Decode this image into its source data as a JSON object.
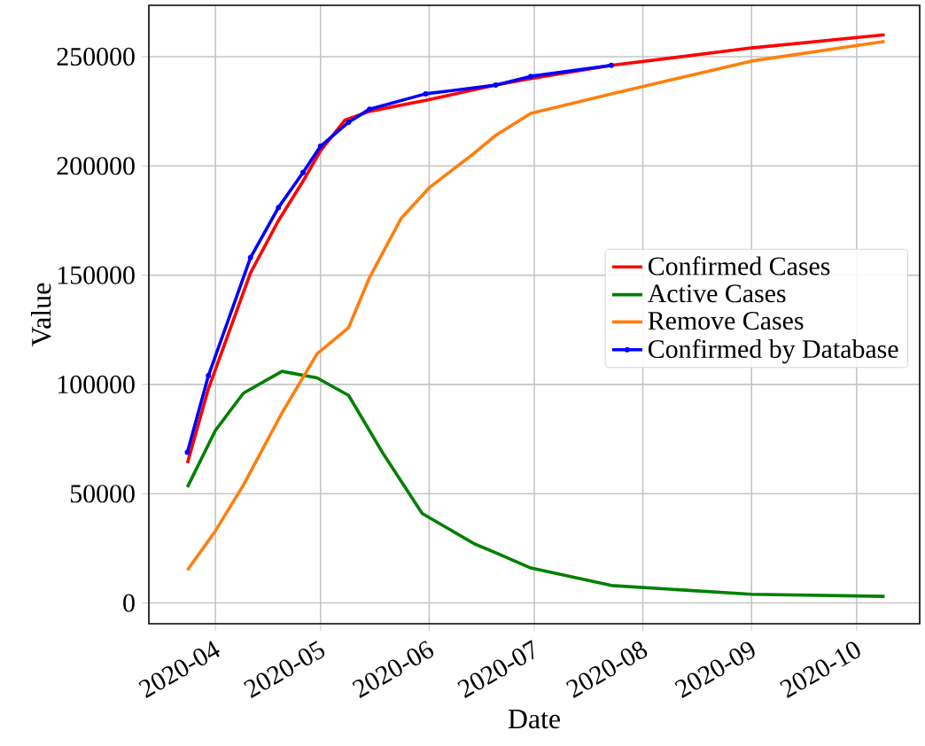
{
  "chart_data": {
    "type": "line",
    "xlabel": "Date",
    "ylabel": "Value",
    "xlim": [
      "2020-03-13",
      "2020-10-19"
    ],
    "ylim": [
      -9500,
      273500
    ],
    "xticks": [
      {
        "value": "2020-04-01",
        "label": "2020-04"
      },
      {
        "value": "2020-05-01",
        "label": "2020-05"
      },
      {
        "value": "2020-06-01",
        "label": "2020-06"
      },
      {
        "value": "2020-07-01",
        "label": "2020-07"
      },
      {
        "value": "2020-08-01",
        "label": "2020-08"
      },
      {
        "value": "2020-09-01",
        "label": "2020-09"
      },
      {
        "value": "2020-10-01",
        "label": "2020-10"
      }
    ],
    "yticks": [
      0,
      50000,
      100000,
      150000,
      200000,
      250000
    ],
    "grid": true,
    "legend": "right",
    "marker": "none",
    "line_style": "solid",
    "series": [
      {
        "name": "Confirmed Cases",
        "color": "#ff0000",
        "x": [
          "2020-03-24",
          "2020-03-30",
          "2020-04-11",
          "2020-04-19",
          "2020-04-26",
          "2020-05-01",
          "2020-05-08",
          "2020-05-15",
          "2020-05-31",
          "2020-06-20",
          "2020-06-30",
          "2020-07-23",
          "2020-09-01",
          "2020-10-09"
        ],
        "values": [
          64000,
          98000,
          151000,
          175000,
          193000,
          207000,
          221000,
          225000,
          230000,
          237000,
          240000,
          246000,
          254000,
          260000
        ]
      },
      {
        "name": "Active Cases",
        "color": "#008000",
        "x": [
          "2020-03-24",
          "2020-04-01",
          "2020-04-09",
          "2020-04-20",
          "2020-04-30",
          "2020-05-09",
          "2020-05-19",
          "2020-05-30",
          "2020-06-14",
          "2020-06-20",
          "2020-06-30",
          "2020-07-23",
          "2020-09-01",
          "2020-10-09"
        ],
        "values": [
          53000,
          79000,
          96000,
          106000,
          103000,
          95000,
          68000,
          41000,
          27000,
          23000,
          16000,
          8000,
          4000,
          3000
        ]
      },
      {
        "name": "Remove Cases",
        "color": "#ff7f0e",
        "x": [
          "2020-03-24",
          "2020-04-01",
          "2020-04-09",
          "2020-04-20",
          "2020-04-30",
          "2020-05-09",
          "2020-05-15",
          "2020-05-24",
          "2020-06-01",
          "2020-06-14",
          "2020-06-20",
          "2020-06-30",
          "2020-07-23",
          "2020-09-01",
          "2020-10-09"
        ],
        "values": [
          15000,
          33000,
          54000,
          87000,
          114000,
          126000,
          149000,
          176000,
          190000,
          206000,
          214000,
          224000,
          233000,
          248000,
          257000
        ]
      },
      {
        "name": "Confirmed by Database",
        "color": "#0000ff",
        "marker": "circle",
        "x": [
          "2020-03-24",
          "2020-03-30",
          "2020-04-11",
          "2020-04-19",
          "2020-04-26",
          "2020-05-01",
          "2020-05-09",
          "2020-05-15",
          "2020-05-31",
          "2020-06-20",
          "2020-06-30",
          "2020-07-23"
        ],
        "values": [
          69000,
          104000,
          158000,
          181000,
          197000,
          209000,
          220000,
          226000,
          233000,
          237000,
          241000,
          246000
        ]
      }
    ]
  }
}
